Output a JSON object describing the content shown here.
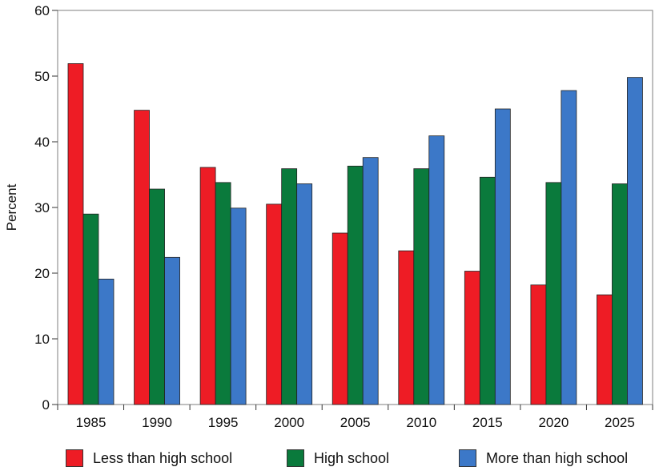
{
  "chart_data": {
    "type": "bar",
    "categories": [
      "1985",
      "1990",
      "1995",
      "2000",
      "2005",
      "2010",
      "2015",
      "2020",
      "2025"
    ],
    "series": [
      {
        "name": "Less than high school",
        "color": "#ee1c25",
        "values": [
          51.9,
          44.8,
          36.1,
          30.5,
          26.1,
          23.4,
          20.3,
          18.2,
          16.7
        ]
      },
      {
        "name": "High school",
        "color": "#0a7a3c",
        "values": [
          29.0,
          32.8,
          33.8,
          35.9,
          36.3,
          35.9,
          34.6,
          33.8,
          33.6
        ]
      },
      {
        "name": "More than high school",
        "color": "#3c78c8",
        "values": [
          19.1,
          22.4,
          29.9,
          33.6,
          37.6,
          40.9,
          45.0,
          47.8,
          49.8
        ]
      }
    ],
    "title": "",
    "xlabel": "",
    "ylabel": "Percent",
    "ylim": [
      0,
      60
    ],
    "yticks": [
      0,
      10,
      20,
      30,
      40,
      50,
      60
    ],
    "grid": false,
    "legend_placement": "bottom"
  }
}
